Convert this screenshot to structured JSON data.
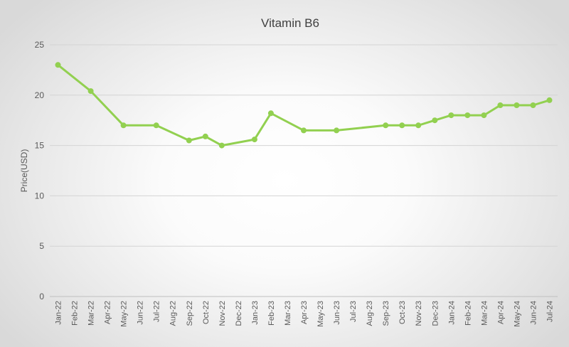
{
  "chart_data": {
    "type": "line",
    "title": "Vitamin B6",
    "xlabel": "",
    "ylabel": "Price(USD)",
    "ylim": [
      0,
      25
    ],
    "yticks": [
      0,
      5,
      10,
      15,
      20,
      25
    ],
    "grid": true,
    "legend": "none",
    "colors": {
      "series": "#92d050"
    },
    "categories": [
      "Jan-22",
      "Feb-22",
      "Mar-22",
      "Apr-22",
      "May-22",
      "Jun-22",
      "Jul-22",
      "Aug-22",
      "Sep-22",
      "Oct-22",
      "Nov-22",
      "Dec-22",
      "Jan-23",
      "Feb-23",
      "Mar-23",
      "Apr-23",
      "May-23",
      "Jun-23",
      "Jul-23",
      "Aug-23",
      "Sep-23",
      "Oct-23",
      "Nov-23",
      "Dec-23",
      "Jan-24",
      "Feb-24",
      "Mar-24",
      "Apr-24",
      "May-24",
      "Jun-24",
      "Jul-24"
    ],
    "series": [
      {
        "values": [
          23,
          null,
          20.4,
          null,
          17,
          null,
          17,
          null,
          15.5,
          15.9,
          15,
          null,
          15.6,
          18.2,
          null,
          16.5,
          null,
          16.5,
          null,
          null,
          17,
          17,
          17,
          17.5,
          18,
          18,
          18,
          19,
          19,
          19,
          19.5
        ]
      }
    ]
  }
}
